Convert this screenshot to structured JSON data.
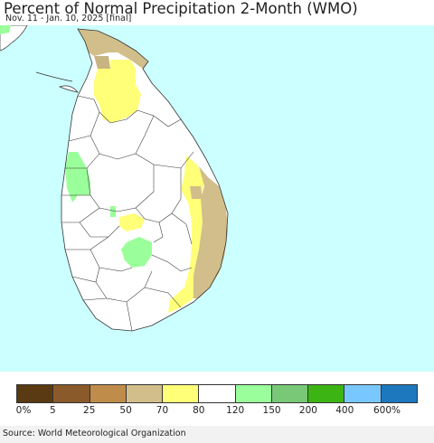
{
  "header": {
    "title": "Percent of Normal Precipitation 2-Month (WMO)",
    "subtitle": "Nov. 11 - Jan. 10, 2025 [final]"
  },
  "map": {
    "ocean_color": "#ccffff",
    "land_default_color": "#ffffff",
    "boundary_color": "#333333"
  },
  "legend": {
    "colors": [
      "#5a3a12",
      "#8b5a2b",
      "#c08c4a",
      "#d2be8a",
      "#ffff78",
      "#ffffff",
      "#9aff9a",
      "#78c878",
      "#3cb414",
      "#78c8ff",
      "#1e78be"
    ],
    "labels": [
      "0%",
      "5",
      "25",
      "50",
      "70",
      "80",
      "120",
      "150",
      "200",
      "400",
      "600%"
    ]
  },
  "footer": {
    "source": "Source: World Meteorological Organization"
  }
}
